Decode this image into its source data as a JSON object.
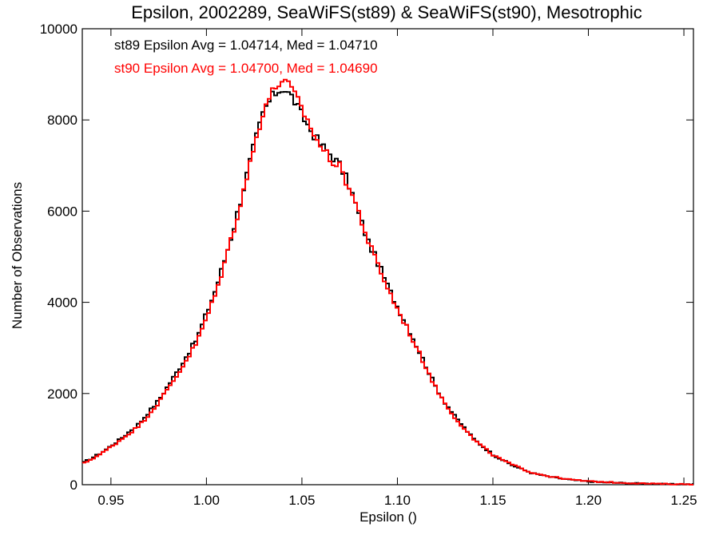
{
  "chart_data": {
    "type": "line",
    "title": "Epsilon, 2002289, SeaWiFS(st89) & SeaWiFS(st90), Mesotrophic",
    "xlabel": "Epsilon ()",
    "ylabel": "Number of Observations",
    "xlim": [
      0.935,
      1.255
    ],
    "ylim": [
      0,
      10000
    ],
    "x_ticks": [
      0.95,
      1.0,
      1.05,
      1.1,
      1.15,
      1.2,
      1.25
    ],
    "x_tick_labels": [
      "0.95",
      "1.00",
      "1.05",
      "1.10",
      "1.15",
      "1.20",
      "1.25"
    ],
    "y_ticks": [
      0,
      2000,
      4000,
      6000,
      8000,
      10000
    ],
    "y_tick_labels": [
      "0",
      "2000",
      "4000",
      "6000",
      "8000",
      "10000"
    ],
    "step": "histogram",
    "grid": false,
    "annotations": [
      {
        "text": "st89 Epsilon Avg = 1.04714, Med = 1.04710",
        "color": "#000000"
      },
      {
        "text": "st90 Epsilon Avg = 1.04700, Med = 1.04690",
        "color": "#ff0000"
      }
    ],
    "x": [
      0.935,
      0.945,
      0.955,
      0.965,
      0.975,
      0.985,
      0.995,
      1.0,
      1.005,
      1.01,
      1.015,
      1.02,
      1.025,
      1.03,
      1.035,
      1.04,
      1.045,
      1.05,
      1.055,
      1.06,
      1.065,
      1.07,
      1.075,
      1.08,
      1.085,
      1.09,
      1.095,
      1.1,
      1.105,
      1.11,
      1.115,
      1.12,
      1.125,
      1.13,
      1.14,
      1.15,
      1.16,
      1.17,
      1.18,
      1.19,
      1.2,
      1.21,
      1.22,
      1.23,
      1.24,
      1.25,
      1.255
    ],
    "series": [
      {
        "name": "st89",
        "color": "#000000",
        "values": [
          470,
          700,
          1000,
          1350,
          1850,
          2500,
          3200,
          3750,
          4300,
          5000,
          5750,
          6600,
          7450,
          8200,
          8550,
          8700,
          8500,
          8100,
          7750,
          7450,
          7250,
          7000,
          6550,
          5900,
          5300,
          4850,
          4350,
          3900,
          3500,
          3050,
          2600,
          2150,
          1800,
          1500,
          1000,
          660,
          430,
          260,
          170,
          110,
          70,
          50,
          35,
          25,
          15,
          10,
          8
        ]
      },
      {
        "name": "st90",
        "color": "#ff0000",
        "values": [
          450,
          680,
          980,
          1300,
          1800,
          2420,
          3120,
          3650,
          4200,
          4950,
          5700,
          6550,
          7400,
          8250,
          8650,
          8900,
          8650,
          8250,
          7800,
          7400,
          7150,
          6950,
          6500,
          5950,
          5300,
          4800,
          4300,
          3850,
          3450,
          3000,
          2580,
          2130,
          1780,
          1480,
          990,
          650,
          440,
          270,
          180,
          115,
          75,
          55,
          38,
          26,
          16,
          11,
          9
        ]
      }
    ]
  }
}
